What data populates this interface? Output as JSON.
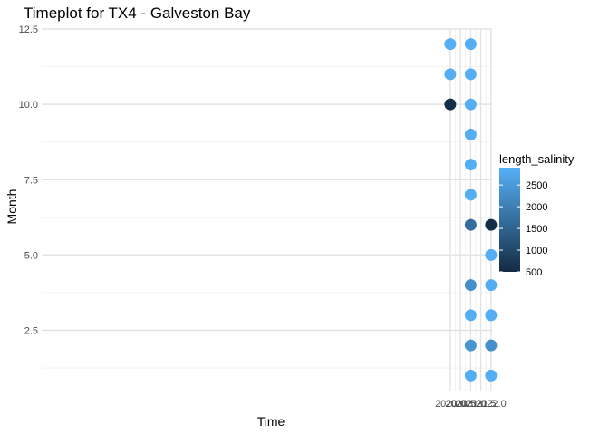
{
  "chart_data": {
    "type": "scatter",
    "title": "Timeplot for TX4 - Galveston Bay",
    "xlabel": "Time",
    "ylabel": "Month",
    "xlim": [
      1999.95,
      2022.05
    ],
    "ylim": [
      0.5,
      12.5
    ],
    "x_ticks": [
      2020.0,
      2020.5,
      2021.0,
      2021.5,
      2022.0
    ],
    "x_tick_labels": [
      "2020.0",
      "2020.5",
      "2021.0",
      "2021.5",
      "2022.0"
    ],
    "y_ticks": [
      2.5,
      5.0,
      7.5,
      10.0,
      12.5
    ],
    "y_tick_labels": [
      "2.5",
      "5.0",
      "7.5",
      "10.0",
      "12.5"
    ],
    "grid": true,
    "color_scale": {
      "name": "length_salinity",
      "min": 500,
      "max": 2900,
      "low_color": "#132b43",
      "high_color": "#56b1f7",
      "breaks": [
        500,
        1000,
        1500,
        2000,
        2500
      ],
      "break_labels": [
        "500",
        "1000",
        "1500",
        "2000",
        "2500"
      ],
      "legend_position": "right"
    },
    "points": [
      {
        "x": 2020.0,
        "y": 12,
        "length_salinity": 2850
      },
      {
        "x": 2020.0,
        "y": 11,
        "length_salinity": 2850
      },
      {
        "x": 2020.0,
        "y": 10,
        "length_salinity": 550
      },
      {
        "x": 2021.0,
        "y": 12,
        "length_salinity": 2850
      },
      {
        "x": 2021.0,
        "y": 11,
        "length_salinity": 2850
      },
      {
        "x": 2021.0,
        "y": 10,
        "length_salinity": 2850
      },
      {
        "x": 2021.0,
        "y": 9,
        "length_salinity": 2850
      },
      {
        "x": 2021.0,
        "y": 8,
        "length_salinity": 2850
      },
      {
        "x": 2021.0,
        "y": 7,
        "length_salinity": 2850
      },
      {
        "x": 2021.0,
        "y": 6,
        "length_salinity": 1700
      },
      {
        "x": 2021.0,
        "y": 4,
        "length_salinity": 2300
      },
      {
        "x": 2021.0,
        "y": 3,
        "length_salinity": 2850
      },
      {
        "x": 2021.0,
        "y": 2,
        "length_salinity": 2400
      },
      {
        "x": 2021.0,
        "y": 1,
        "length_salinity": 2850
      },
      {
        "x": 2022.0,
        "y": 6,
        "length_salinity": 550
      },
      {
        "x": 2022.0,
        "y": 5,
        "length_salinity": 2850
      },
      {
        "x": 2022.0,
        "y": 4,
        "length_salinity": 2850
      },
      {
        "x": 2022.0,
        "y": 3,
        "length_salinity": 2850
      },
      {
        "x": 2022.0,
        "y": 2,
        "length_salinity": 2300
      },
      {
        "x": 2022.0,
        "y": 1,
        "length_salinity": 2850
      }
    ]
  }
}
